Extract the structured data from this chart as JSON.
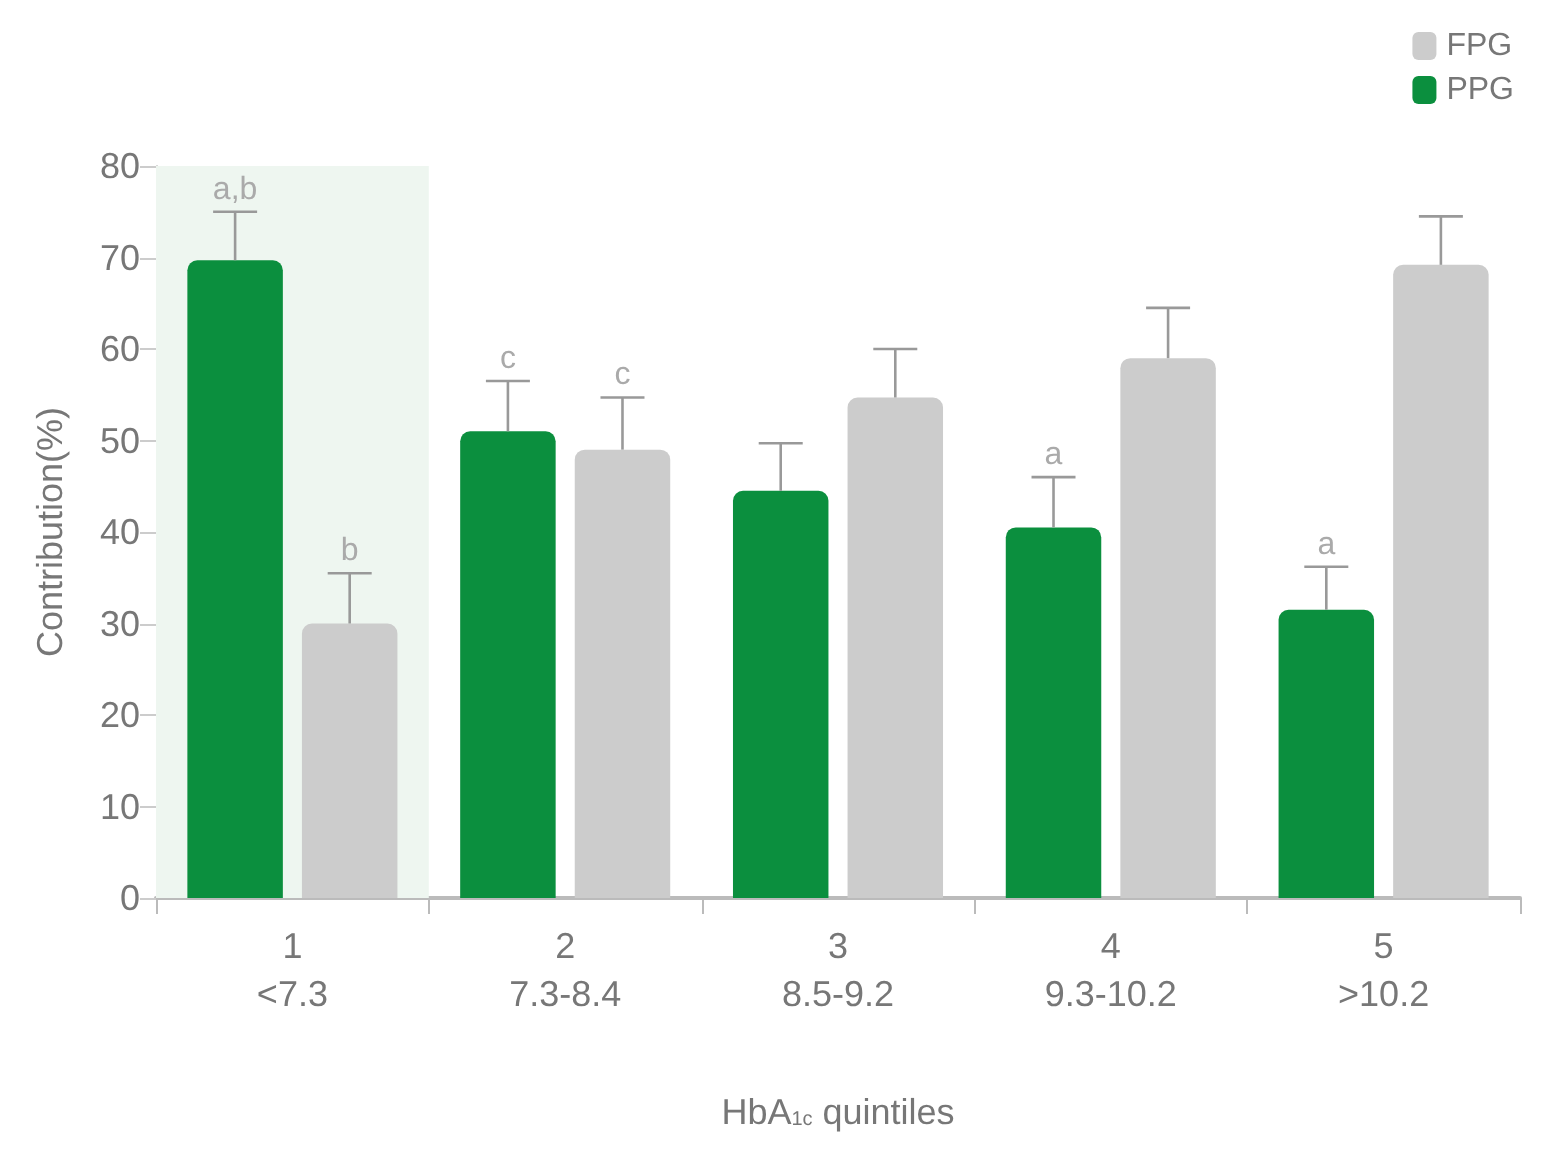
{
  "chart_data": {
    "type": "bar",
    "categories": [
      "1\n<7.3",
      "2\n7.3-8.4",
      "3\n8.5-9.2",
      "4\n9.3-10.2",
      "5\n>10.2"
    ],
    "series": [
      {
        "name": "PPG",
        "color": "#0b8f3e",
        "values": [
          69.7,
          51,
          44.5,
          40.5,
          31.5
        ],
        "errors": [
          [
            69.7,
            75
          ],
          [
            51,
            56.5
          ],
          [
            44.5,
            49.7
          ],
          [
            40.5,
            46
          ],
          [
            31.5,
            36.2
          ]
        ],
        "value_labels": [
          "a,b",
          "c",
          null,
          "a",
          "a"
        ]
      },
      {
        "name": "FPG",
        "color": "#cccccc",
        "values": [
          30,
          49,
          54.7,
          59,
          69.2
        ],
        "errors": [
          [
            30,
            35.5
          ],
          [
            49,
            54.7
          ],
          [
            54.7,
            60
          ],
          [
            59,
            64.5
          ],
          [
            69.2,
            74.5
          ]
        ],
        "value_labels": [
          "b",
          "c",
          null,
          null,
          null
        ]
      }
    ],
    "xlabel": "HbA$_{1c}$ quintiles",
    "ylabel": "Contribution(%)",
    "ylim": [
      0,
      80
    ],
    "yticks": [
      0,
      10,
      20,
      30,
      40,
      50,
      60,
      70,
      80
    ],
    "bands": [
      {
        "axis": "x",
        "from": "1\n<7.3",
        "to": "1\n<7.3",
        "color": "#eef6f0"
      }
    ],
    "legend": "top right",
    "grid": false
  }
}
